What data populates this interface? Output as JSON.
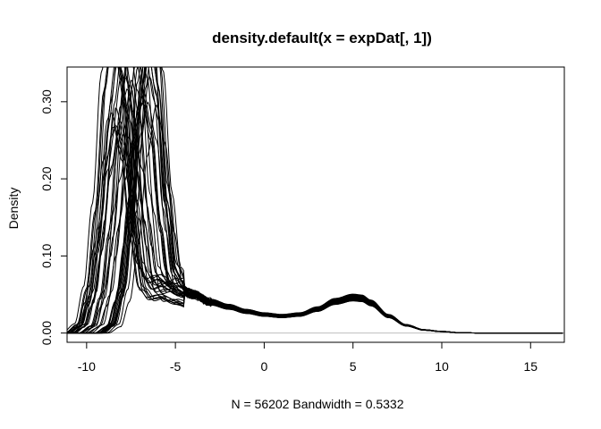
{
  "chart_data": {
    "type": "line",
    "title": "density.default(x = expDat[, 1])",
    "xlabel": "N = 56202   Bandwidth = 0.5332",
    "ylabel": "Density",
    "xlim": [
      -11.1,
      16.9
    ],
    "ylim": [
      -0.012,
      0.345
    ],
    "x_ticks": [
      -10,
      -5,
      0,
      5,
      10,
      15
    ],
    "x_tick_labels": [
      "-10",
      "-5",
      "0",
      "5",
      "10",
      "15"
    ],
    "y_ticks": [
      0.0,
      0.1,
      0.2,
      0.3
    ],
    "y_tick_labels": [
      "0.00",
      "0.10",
      "0.20",
      "0.30"
    ],
    "grid": false,
    "legend": "none",
    "line_color": "#000000",
    "zero_line_color": "#bebebe",
    "series_count_drawn": 40,
    "representative_curve": {
      "x": [
        -10.2,
        -9.5,
        -9.0,
        -8.5,
        -8.0,
        -7.5,
        -7.0,
        -6.5,
        -6.0,
        -5.5,
        -5.0,
        -4.0,
        -3.0,
        -2.0,
        -1.0,
        0.0,
        1.0,
        2.0,
        3.0,
        4.0,
        5.0,
        5.5,
        6.0,
        7.0,
        8.0,
        9.0,
        10.0,
        11.0,
        12.0,
        16.9
      ],
      "y": [
        0.0,
        0.01,
        0.05,
        0.14,
        0.28,
        0.36,
        0.3,
        0.16,
        0.075,
        0.058,
        0.062,
        0.05,
        0.04,
        0.034,
        0.028,
        0.024,
        0.022,
        0.024,
        0.031,
        0.041,
        0.046,
        0.045,
        0.039,
        0.022,
        0.01,
        0.004,
        0.002,
        0.0005,
        0.0001,
        0.0
      ]
    }
  }
}
